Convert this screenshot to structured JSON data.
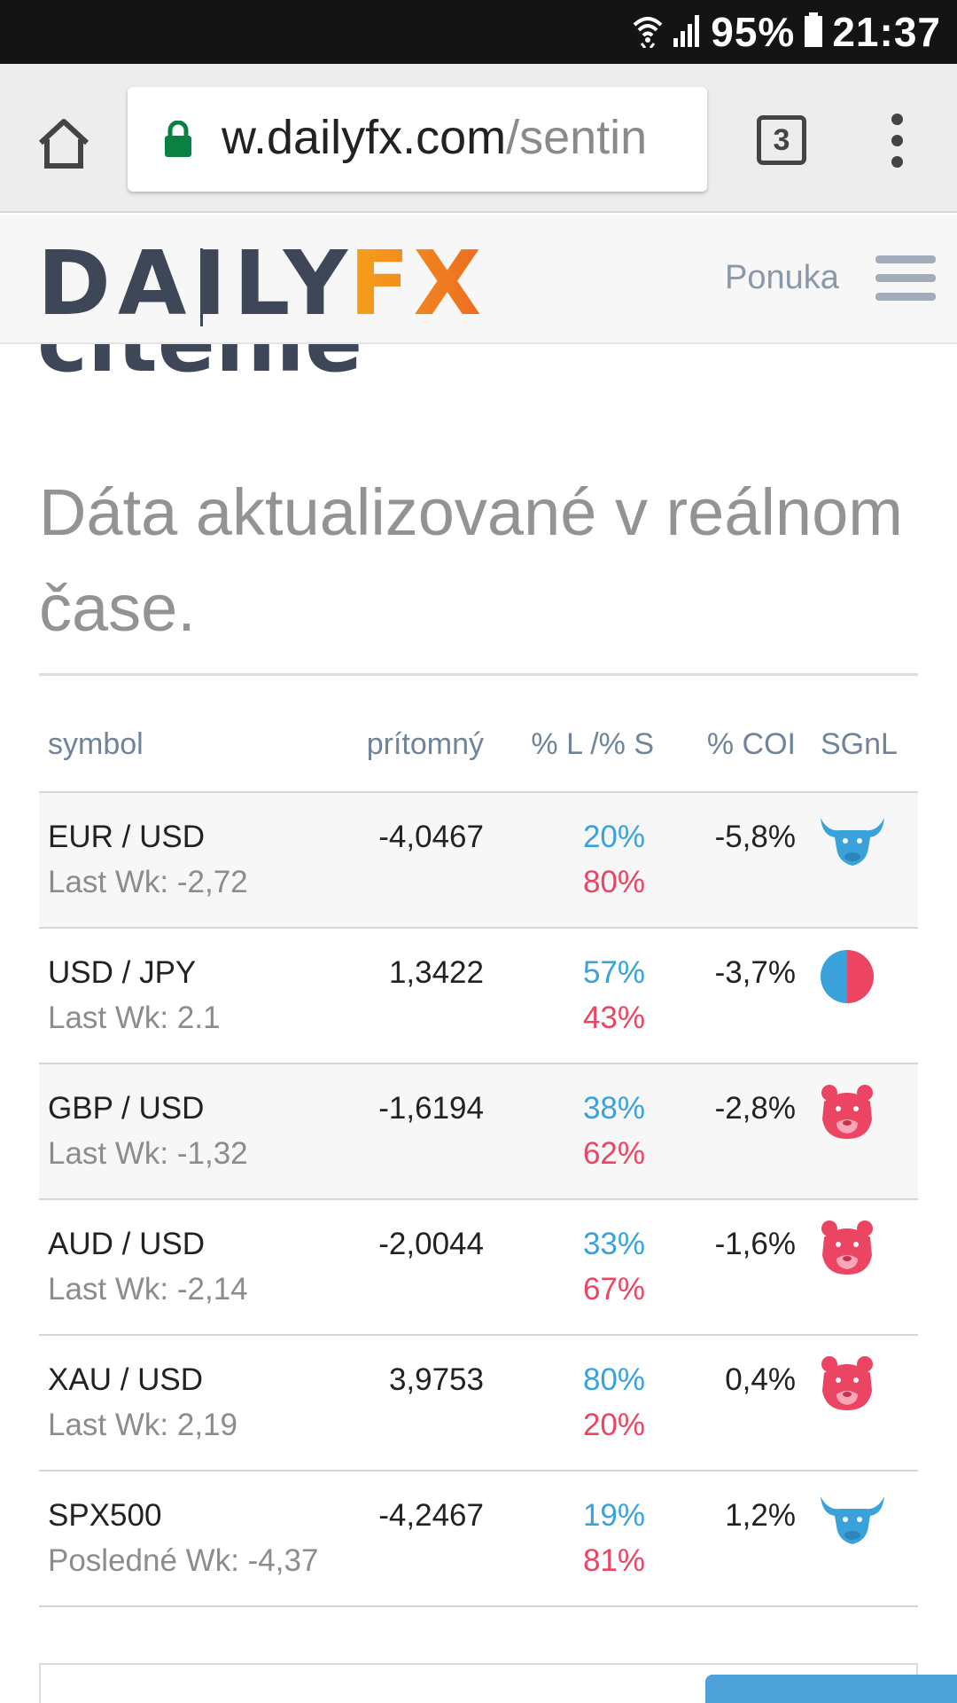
{
  "status_bar": {
    "battery": "95%",
    "time": "21:37",
    "icons": [
      "wifi-icon",
      "signal-icon",
      "battery-icon"
    ]
  },
  "browser": {
    "url_domain": "w.dailyfx.com",
    "url_path": "/sentin",
    "tab_count": "3",
    "icons": [
      "home-icon",
      "lock-icon",
      "overflow-menu-icon"
    ]
  },
  "site_header": {
    "logo_text_dark": "DAILY",
    "logo_text_orange": "FX",
    "menu_label": "Ponuka",
    "icons": [
      "hamburger-icon"
    ]
  },
  "page": {
    "heading_partial": "cítenie",
    "subheading": "Dáta aktualizované v reálnom čase."
  },
  "table": {
    "headers": {
      "symbol": "symbol",
      "current": "prítomný",
      "long_short": "% L /% S",
      "coi": "% COI",
      "signal": "SGnL"
    },
    "rows": [
      {
        "symbol": "EUR / USD",
        "last_week": "Last Wk: -2,72",
        "current": "-4,0467",
        "long": "20%",
        "short": "80%",
        "coi": "-5,8%",
        "signal": "bull-icon"
      },
      {
        "symbol": "USD / JPY",
        "last_week": "Last Wk: 2.1",
        "current": "1,3422",
        "long": "57%",
        "short": "43%",
        "coi": "-3,7%",
        "signal": "mixed-icon"
      },
      {
        "symbol": "GBP / USD",
        "last_week": "Last Wk: -1,32",
        "current": "-1,6194",
        "long": "38%",
        "short": "62%",
        "coi": "-2,8%",
        "signal": "bear-icon"
      },
      {
        "symbol": "AUD / USD",
        "last_week": "Last Wk: -2,14",
        "current": "-2,0044",
        "long": "33%",
        "short": "67%",
        "coi": "-1,6%",
        "signal": "bear-icon"
      },
      {
        "symbol": "XAU / USD",
        "last_week": "Last Wk: 2,19",
        "current": "3,9753",
        "long": "80%",
        "short": "20%",
        "coi": "0,4%",
        "signal": "bear-icon"
      },
      {
        "symbol": "SPX500",
        "last_week": "Posledné Wk: -4,37",
        "current": "-4,2467",
        "long": "19%",
        "short": "81%",
        "coi": "1,2%",
        "signal": "bull-icon"
      }
    ]
  },
  "colors": {
    "long": "#3aa2db",
    "short": "#ec4463",
    "logo_dark": "#3d4757",
    "logo_orange": "#f08a1c"
  }
}
